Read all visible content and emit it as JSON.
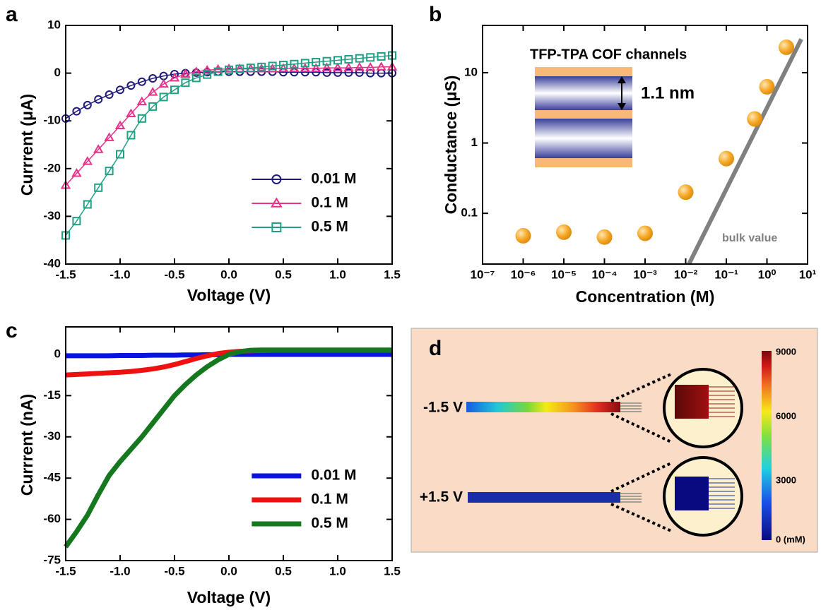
{
  "chart_data": [
    {
      "type": "line",
      "panel_label": "a",
      "x_label": "Voltage (V)",
      "y_label": "Currrent (μA)",
      "xlim": [
        -1.5,
        1.5
      ],
      "ylim": [
        -40,
        10
      ],
      "xticks": [
        -1.5,
        {
          "value": -1,
          "label": "-1.0"
        },
        -0.5,
        {
          "value": 0,
          "label": "0.0"
        },
        0.5,
        {
          "value": 1,
          "label": "1.0"
        },
        1.5
      ],
      "yticks": [
        -40,
        -30,
        -20,
        -10,
        0,
        10
      ],
      "legend": "lower right",
      "x": [
        -1.5,
        -1.4,
        -1.3,
        -1.2,
        -1.1,
        -1.0,
        -0.9,
        -0.8,
        -0.7,
        -0.6,
        -0.5,
        -0.4,
        -0.3,
        -0.2,
        -0.1,
        0,
        0.1,
        0.2,
        0.3,
        0.4,
        0.5,
        0.6,
        0.7,
        0.8,
        0.9,
        1.0,
        1.1,
        1.2,
        1.3,
        1.4,
        1.5
      ],
      "series": [
        {
          "name": "0.01 M",
          "color": "#1f1a7a",
          "marker": "circle",
          "values": [
            -9.5,
            -8,
            -6.7,
            -5.5,
            -4.5,
            -3.5,
            -2.6,
            -1.8,
            -1.1,
            -0.6,
            -0.2,
            0,
            0.1,
            0.2,
            0.3,
            0.3,
            0.3,
            0.3,
            0.3,
            0.3,
            0.2,
            0.2,
            0.2,
            0.2,
            0.1,
            0.1,
            0.1,
            0.1,
            0,
            0,
            0
          ]
        },
        {
          "name": "0.1 M",
          "color": "#e8318a",
          "marker": "triangle",
          "values": [
            -23.5,
            -21,
            -18.5,
            -16,
            -13.5,
            -11,
            -8.5,
            -6,
            -4,
            -2.3,
            -1,
            -0.2,
            0.3,
            0.6,
            0.8,
            0.9,
            0.9,
            0.9,
            0.9,
            0.9,
            1,
            1,
            1,
            1,
            1.1,
            1.1,
            1.1,
            1.2,
            1.2,
            1.3,
            1.3
          ]
        },
        {
          "name": "0.5 M",
          "color": "#1fa084",
          "marker": "square",
          "values": [
            -34,
            -31,
            -27.5,
            -24,
            -20.5,
            -17,
            -13,
            -9.5,
            -7,
            -5,
            -3.5,
            -2,
            -1,
            -0.3,
            0.3,
            0.7,
            0.9,
            1.1,
            1.3,
            1.5,
            1.7,
            1.9,
            2.1,
            2.3,
            2.5,
            2.7,
            2.9,
            3.1,
            3.3,
            3.5,
            3.7
          ]
        }
      ]
    },
    {
      "type": "scatter",
      "panel_label": "b",
      "x_label": "Concentration (M)",
      "y_label": "Conductance (μS)",
      "xscale": "log",
      "yscale": "log",
      "xlim": [
        1e-07,
        10
      ],
      "ylim": [
        0.019,
        47
      ],
      "xticks": [
        {
          "value": 1e-07,
          "label": "10⁻⁷"
        },
        {
          "value": 1e-06,
          "label": "10⁻⁶"
        },
        {
          "value": 1e-05,
          "label": "10⁻⁵"
        },
        {
          "value": 0.0001,
          "label": "10⁻⁴"
        },
        {
          "value": 0.001,
          "label": "10⁻³"
        },
        {
          "value": 0.01,
          "label": "10⁻²"
        },
        {
          "value": 0.1,
          "label": "10⁻¹"
        },
        {
          "value": 1,
          "label": "10⁰"
        },
        {
          "value": 10,
          "label": "10¹"
        }
      ],
      "yticks": [
        0.1,
        1,
        10
      ],
      "title": "TFP-TPA COF channels",
      "annotation": "1.1 nm",
      "series": [
        {
          "color": "#f5a623",
          "x": [
            1e-06,
            1e-05,
            0.0001,
            0.001,
            0.01,
            0.1,
            0.5,
            1,
            3
          ],
          "values": [
            0.048,
            0.054,
            0.046,
            0.052,
            0.2,
            0.6,
            2.2,
            6.3,
            23
          ]
        }
      ],
      "trend": {
        "label": "bulk value",
        "color": "#808080",
        "x": [
          0.012,
          7
        ],
        "values": [
          0.019,
          30
        ]
      }
    },
    {
      "type": "line",
      "panel_label": "c",
      "x_label": "Voltage (V)",
      "y_label": "Currrent (nA)",
      "xlim": [
        -1.5,
        1.5
      ],
      "ylim": [
        -75,
        10
      ],
      "xticks": [
        -1.5,
        {
          "value": -1,
          "label": "-1.0"
        },
        -0.5,
        {
          "value": 0,
          "label": "0.0"
        },
        0.5,
        {
          "value": 1,
          "label": "1.0"
        },
        1.5
      ],
      "yticks": [
        -75,
        -60,
        -45,
        -30,
        -15,
        0
      ],
      "legend": "lower right",
      "x": [
        -1.5,
        -1.4,
        -1.3,
        -1.2,
        -1.1,
        -1.0,
        -0.9,
        -0.8,
        -0.7,
        -0.6,
        -0.5,
        -0.4,
        -0.3,
        -0.2,
        -0.1,
        0,
        0.1,
        0.2,
        0.3,
        0.4,
        0.5,
        0.6,
        0.7,
        0.8,
        0.9,
        1.0,
        1.1,
        1.2,
        1.3,
        1.4,
        1.5
      ],
      "series": [
        {
          "name": "0.01 M",
          "color": "#0a14e0",
          "values": [
            -0.5,
            -0.5,
            -0.5,
            -0.5,
            -0.5,
            -0.4,
            -0.4,
            -0.4,
            -0.3,
            -0.3,
            -0.3,
            -0.2,
            -0.2,
            -0.1,
            -0.1,
            0,
            0,
            0,
            0,
            0,
            0,
            0,
            0,
            0,
            0,
            0,
            0,
            0,
            0,
            0,
            0
          ]
        },
        {
          "name": "0.1 M",
          "color": "#f01010",
          "values": [
            -7.5,
            -7.3,
            -7.1,
            -6.9,
            -6.7,
            -6.5,
            -6.2,
            -5.8,
            -5.3,
            -4.6,
            -3.7,
            -2.6,
            -1.5,
            -0.5,
            0.3,
            0.8,
            1.1,
            1.3,
            1.4,
            1.5,
            1.5,
            1.5,
            1.5,
            1.5,
            1.5,
            1.5,
            1.5,
            1.5,
            1.5,
            1.5,
            1.5
          ]
        },
        {
          "name": "0.5 M",
          "color": "#16781e",
          "values": [
            -70,
            -64.5,
            -58.5,
            -51,
            -44,
            -39,
            -34.5,
            -30,
            -25,
            -20,
            -15,
            -11,
            -7.5,
            -4.5,
            -2,
            0,
            1,
            1.5,
            1.6,
            1.6,
            1.6,
            1.6,
            1.6,
            1.6,
            1.6,
            1.6,
            1.6,
            1.6,
            1.6,
            1.6,
            1.6
          ]
        }
      ]
    }
  ],
  "diagram": {
    "panel_label": "d",
    "voltages": [
      "-1.5 V",
      "+1.5 V"
    ],
    "colorbar_labels": [
      "9000",
      "6000",
      "3000",
      "0 (mM)"
    ]
  }
}
